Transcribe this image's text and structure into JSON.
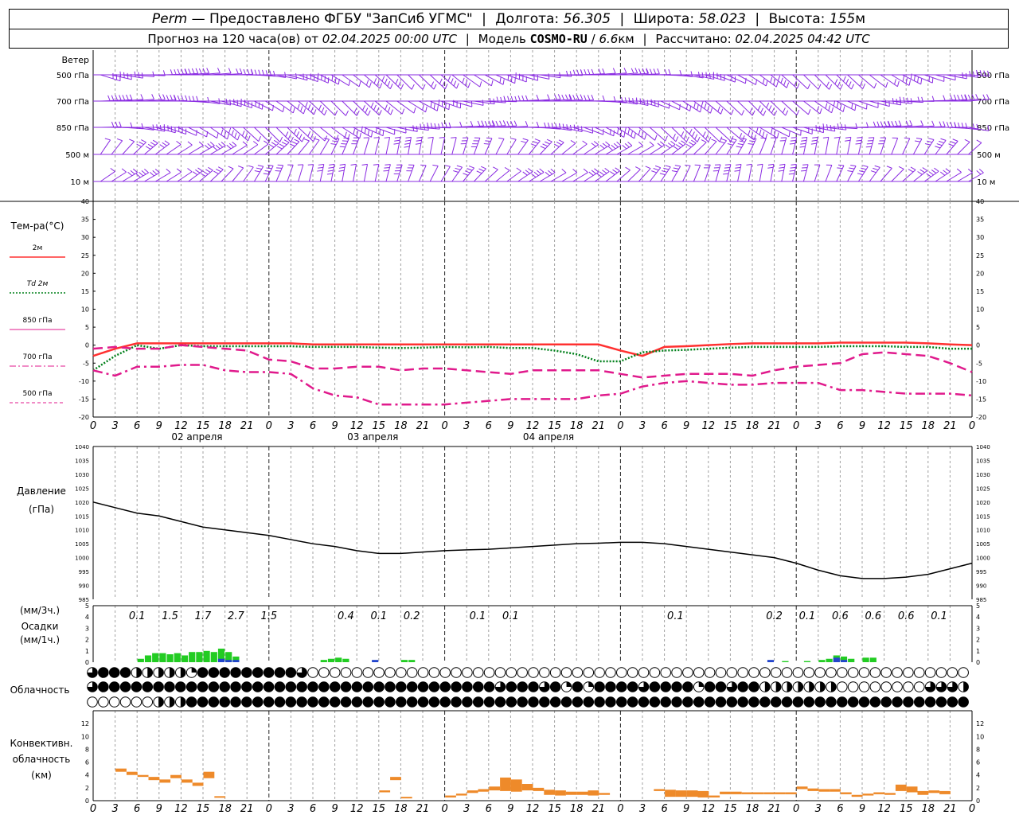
{
  "header": {
    "station": "Perm",
    "dash": "—",
    "provider": "Предоставлено ФГБУ \"ЗапСиб УГМС\"",
    "lon_label": "Долгота:",
    "lon_value": "56.305",
    "lat_label": "Широта:",
    "lat_value": "58.023",
    "alt_label": "Высота:",
    "alt_value": "155",
    "alt_unit": "м",
    "forecast_label": "Прогноз на 120 часа(ов) от",
    "forecast_start": "02.04.2025 00:00 UTC",
    "model_label": "Модель",
    "model_name": "COSMO-RU",
    "model_res": "6.6",
    "model_res_unit": "км",
    "computed_label": "Рассчитано:",
    "computed_time": "02.04.2025 04:42 UTC",
    "bar": "|",
    "slash": "/"
  },
  "colors": {
    "t2m": "#ff3030",
    "td2m": "#00801a",
    "t850": "#e01a8c",
    "t700": "#e01a8c",
    "t500": "#e01a8c",
    "wind": "#8a2be2",
    "precip_3h": "#22cc22",
    "precip_1h": "#2244cc",
    "convective": "#ee8a2a",
    "grid": "#999999"
  },
  "chart_data": [
    {
      "id": "wind",
      "type": "wind-barbs",
      "title": "Ветер",
      "levels": [
        "500 гПа",
        "700 гПа",
        "850 гПа",
        "500 м",
        "10 м"
      ],
      "x_hours": [
        0,
        120
      ],
      "note_levels_right": [
        "500 гПа",
        "700 гПа",
        "850 гПа",
        "500 м",
        "10 м"
      ]
    },
    {
      "id": "temperature",
      "type": "line",
      "title": "Тем-ра(°C)",
      "ylim": [
        -20,
        40
      ],
      "yticks": [
        -20,
        -15,
        -10,
        -5,
        0,
        5,
        10,
        15,
        20,
        25,
        30,
        35,
        40
      ],
      "legend": [
        {
          "label": "2м",
          "key": "t2m",
          "style": "solid"
        },
        {
          "label": "Td 2м",
          "key": "td2m",
          "style": "dotted"
        },
        {
          "label": "850 гПа",
          "key": "t850",
          "style": "dashed"
        },
        {
          "label": "700 гПа",
          "key": "t700",
          "style": "dashdot"
        },
        {
          "label": "500 гПа",
          "key": "t500",
          "style": "dashed-thin"
        }
      ],
      "x": [
        0,
        3,
        6,
        9,
        12,
        15,
        18,
        21,
        24,
        27,
        30,
        33,
        36,
        39,
        42,
        45,
        48,
        51,
        54,
        57,
        60,
        63,
        66,
        69,
        72,
        75,
        78,
        81,
        84,
        87,
        90,
        93,
        96,
        99,
        102,
        105,
        108,
        111,
        114,
        117,
        120
      ],
      "series": [
        {
          "key": "t2m",
          "values": [
            -3,
            -1,
            0.5,
            0.5,
            0.5,
            0.5,
            0.5,
            0.5,
            0.5,
            0.5,
            0.2,
            0.2,
            0.2,
            0.2,
            0.2,
            0.2,
            0.2,
            0.2,
            0.2,
            0.2,
            0.2,
            0.2,
            0.2,
            0.2,
            -1.5,
            -3,
            -0.5,
            -0.3,
            0,
            0.3,
            0.5,
            0.5,
            0.5,
            0.5,
            0.7,
            0.7,
            0.7,
            0.7,
            0.5,
            0.2,
            0
          ]
        },
        {
          "key": "td2m",
          "values": [
            -7,
            -3,
            0,
            -1,
            0,
            -0.3,
            -0.3,
            -0.3,
            -0.3,
            -0.3,
            -0.5,
            -0.5,
            -0.5,
            -0.7,
            -0.8,
            -0.7,
            -0.5,
            -0.6,
            -0.5,
            -0.8,
            -0.8,
            -1.5,
            -2.5,
            -4.5,
            -4.5,
            -2,
            -1.5,
            -1.3,
            -1,
            -0.7,
            -0.5,
            -0.5,
            -0.5,
            -0.5,
            -0.3,
            -0.3,
            -0.3,
            -0.5,
            -0.5,
            -1,
            -1
          ]
        },
        {
          "key": "t850",
          "values": [
            -1,
            -0.5,
            -1,
            -1,
            0,
            -0.5,
            -1,
            -1.5,
            -4,
            -4.5,
            -6.5,
            -6.5,
            -6,
            -6,
            -7,
            -6.5,
            -6.5,
            -7,
            -7.5,
            -8,
            -7,
            -7,
            -7,
            -7,
            -8,
            -9,
            -8.5,
            -8,
            -8,
            -8,
            -8.5,
            -7,
            -6,
            -5.5,
            -5,
            -2.5,
            -2,
            -2.5,
            -3,
            -5,
            -7.5
          ]
        },
        {
          "key": "t700",
          "values": [
            -7,
            -8.5,
            -6,
            -6,
            -5.5,
            -5.5,
            -7,
            -7.5,
            -7.5,
            -8,
            -12,
            -14,
            -14.5,
            -16.5,
            -16.5,
            -16.5,
            -16.5,
            -16,
            -15.5,
            -15,
            -15,
            -15,
            -15,
            -14,
            -13.5,
            -11.5,
            -10.5,
            -10,
            -10.5,
            -11,
            -11,
            -10.5,
            -10.5,
            -10.5,
            -12.5,
            -12.5,
            -13,
            -13.5,
            -13.5,
            -13.5,
            -14
          ]
        }
      ],
      "xtick_labels": [
        "0",
        "3",
        "6",
        "9",
        "12",
        "15",
        "18",
        "21",
        "0",
        "3",
        "6",
        "9",
        "12",
        "15",
        "18",
        "21",
        "0",
        "3",
        "6",
        "9",
        "12",
        "15",
        "18",
        "21",
        "0",
        "3",
        "6",
        "9",
        "12",
        "15",
        "18",
        "21",
        "0",
        "3",
        "6",
        "9",
        "12",
        "15",
        "18",
        "21",
        "0"
      ],
      "day_labels": [
        "02 апреля",
        "03 апреля",
        "04 апреля"
      ]
    },
    {
      "id": "pressure",
      "type": "line",
      "title": "Давление",
      "ylabel": "(гПа)",
      "ylim": [
        985,
        1040
      ],
      "yticks": [
        985,
        990,
        995,
        1000,
        1005,
        1010,
        1015,
        1020,
        1025,
        1030,
        1035,
        1040
      ],
      "x": [
        0,
        3,
        6,
        9,
        12,
        15,
        18,
        21,
        24,
        27,
        30,
        33,
        36,
        39,
        42,
        45,
        48,
        51,
        54,
        57,
        60,
        63,
        66,
        69,
        72,
        75,
        78,
        81,
        84,
        87,
        90,
        93,
        96,
        99,
        102,
        105,
        108,
        111,
        114,
        117,
        120
      ],
      "values": [
        1020,
        1018,
        1016,
        1015,
        1013,
        1011,
        1010,
        1009,
        1008,
        1006.5,
        1005,
        1004,
        1002.5,
        1001.5,
        1001.5,
        1002,
        1002.5,
        1002.8,
        1003,
        1003.5,
        1004,
        1004.5,
        1005,
        1005.2,
        1005.5,
        1005.5,
        1005,
        1004,
        1003,
        1002,
        1001,
        1000,
        998,
        995.5,
        993.5,
        992.5,
        992.5,
        993,
        994,
        996,
        998
      ]
    },
    {
      "id": "precipitation",
      "type": "bar",
      "title": "Осадки",
      "ylabel_3h": "(мм/3ч.)",
      "ylabel_1h": "(мм/1ч.)",
      "ylim": [
        0,
        5
      ],
      "yticks": [
        0,
        1,
        2,
        3,
        4,
        5
      ],
      "labels_3h": [
        {
          "x": 6,
          "text": "0.1"
        },
        {
          "x": 10.5,
          "text": "1.5"
        },
        {
          "x": 15,
          "text": "1.7"
        },
        {
          "x": 19.5,
          "text": "2.7"
        },
        {
          "x": 24,
          "text": "1.5"
        },
        {
          "x": 34.5,
          "text": "0.4"
        },
        {
          "x": 39,
          "text": "0.1"
        },
        {
          "x": 43.5,
          "text": "0.2"
        },
        {
          "x": 52.5,
          "text": "0.1"
        },
        {
          "x": 57,
          "text": "0.1"
        },
        {
          "x": 79.5,
          "text": "0.1"
        },
        {
          "x": 93,
          "text": "0.2"
        },
        {
          "x": 97.5,
          "text": "0.1"
        },
        {
          "x": 102,
          "text": "0.6"
        },
        {
          "x": 106.5,
          "text": "0.6"
        },
        {
          "x": 111,
          "text": "0.6"
        },
        {
          "x": 115.5,
          "text": "0.1"
        }
      ],
      "bars_1h_green": [
        {
          "x": 7,
          "v": 0.3
        },
        {
          "x": 8,
          "v": 0.6
        },
        {
          "x": 9,
          "v": 0.8
        },
        {
          "x": 10,
          "v": 0.8
        },
        {
          "x": 11,
          "v": 0.7
        },
        {
          "x": 12,
          "v": 0.8
        },
        {
          "x": 13,
          "v": 0.6
        },
        {
          "x": 14,
          "v": 0.9
        },
        {
          "x": 15,
          "v": 0.9
        },
        {
          "x": 16,
          "v": 1.0
        },
        {
          "x": 17,
          "v": 0.9
        },
        {
          "x": 18,
          "v": 1.2
        },
        {
          "x": 19,
          "v": 0.9
        },
        {
          "x": 20,
          "v": 0.5
        },
        {
          "x": 32,
          "v": 0.2
        },
        {
          "x": 33,
          "v": 0.3
        },
        {
          "x": 34,
          "v": 0.4
        },
        {
          "x": 35,
          "v": 0.3
        },
        {
          "x": 43,
          "v": 0.2
        },
        {
          "x": 44,
          "v": 0.2
        },
        {
          "x": 95,
          "v": 0.1
        },
        {
          "x": 98,
          "v": 0.1
        },
        {
          "x": 100,
          "v": 0.2
        },
        {
          "x": 101,
          "v": 0.3
        },
        {
          "x": 102,
          "v": 0.6
        },
        {
          "x": 103,
          "v": 0.5
        },
        {
          "x": 104,
          "v": 0.3
        },
        {
          "x": 106,
          "v": 0.4
        },
        {
          "x": 107,
          "v": 0.4
        }
      ],
      "bars_1h_blue": [
        {
          "x": 18,
          "v": 0.3
        },
        {
          "x": 19,
          "v": 0.2
        },
        {
          "x": 20,
          "v": 0.2
        },
        {
          "x": 39,
          "v": 0.2
        },
        {
          "x": 93,
          "v": 0.2
        },
        {
          "x": 102,
          "v": 0.4
        },
        {
          "x": 103,
          "v": 0.2
        }
      ]
    },
    {
      "id": "clouds",
      "type": "table",
      "title": "Облачность",
      "rows": [
        "LFFFHHHHHQFFFFFFFFFLEEEEEEEEEEEEEEEEEEEEEEEEEEEEEEEEEEEEEEEEEEEEEEEEEEEEEEEEEEEEEEELLEHHELEEHLQLLLLLLLFFFFFFFFFFLEEEEEEEEE",
        "LFFFFFFFFFFFFFFFFFFFFFFFFFFFFFFFFFFFFLFFFLFQFQFFFFLFFFFQFFLFFHHHHHHHEEEEEEEELLLHLFLFFFFFFFFFFFFFFFFFFFFFFFFFFFFFEEEEEEEE",
        "EEEEEEHHHFFFFFFFFFFFFFFFFFFFFFFFFFFFFFFFFFFFFFFFFFFFFFFFFFFFFFFFFFFFFFFFFFFFFFFFFFQQHLQHLQFFFFFFFFFFFFFFFFFFFFFFFFFLFFFF"
      ]
    },
    {
      "id": "convective",
      "type": "bar",
      "title": "Конвективн.",
      "title2": "облачность",
      "ylabel": "(км)",
      "ylim": [
        0,
        14
      ],
      "yticks": [
        0,
        2,
        4,
        6,
        8,
        10,
        12
      ],
      "segments": [
        {
          "x": 3,
          "base": 4.5,
          "top": 5.0
        },
        {
          "x": 4,
          "base": 4.0,
          "top": 4.5
        },
        {
          "x": 5,
          "base": 3.7,
          "top": 4.0
        },
        {
          "x": 6,
          "base": 3.2,
          "top": 3.7
        },
        {
          "x": 7,
          "base": 2.8,
          "top": 3.3
        },
        {
          "x": 8,
          "base": 3.5,
          "top": 4.0
        },
        {
          "x": 9,
          "base": 2.8,
          "top": 3.3
        },
        {
          "x": 10,
          "base": 2.3,
          "top": 2.8
        },
        {
          "x": 11,
          "base": 3.5,
          "top": 4.5
        },
        {
          "x": 12,
          "base": 0.5,
          "top": 0.7
        },
        {
          "x": 27,
          "base": 1.3,
          "top": 1.6
        },
        {
          "x": 28,
          "base": 3.2,
          "top": 3.7
        },
        {
          "x": 29,
          "base": 0.4,
          "top": 0.6
        },
        {
          "x": 33,
          "base": 0.5,
          "top": 0.8
        },
        {
          "x": 34,
          "base": 0.8,
          "top": 1.1
        },
        {
          "x": 35,
          "base": 1.2,
          "top": 1.6
        },
        {
          "x": 36,
          "base": 1.4,
          "top": 1.8
        },
        {
          "x": 37,
          "base": 1.6,
          "top": 2.2
        },
        {
          "x": 38,
          "base": 1.5,
          "top": 3.6
        },
        {
          "x": 39,
          "base": 1.4,
          "top": 3.3
        },
        {
          "x": 40,
          "base": 1.6,
          "top": 2.6
        },
        {
          "x": 41,
          "base": 1.5,
          "top": 2.0
        },
        {
          "x": 42,
          "base": 0.9,
          "top": 1.7
        },
        {
          "x": 43,
          "base": 0.8,
          "top": 1.6
        },
        {
          "x": 44,
          "base": 0.9,
          "top": 1.4
        },
        {
          "x": 45,
          "base": 0.9,
          "top": 1.4
        },
        {
          "x": 46,
          "base": 0.8,
          "top": 1.6
        },
        {
          "x": 47,
          "base": 0.9,
          "top": 1.2
        },
        {
          "x": 52,
          "base": 1.5,
          "top": 1.8
        },
        {
          "x": 53,
          "base": 0.6,
          "top": 1.7
        },
        {
          "x": 54,
          "base": 0.6,
          "top": 1.6
        },
        {
          "x": 55,
          "base": 0.6,
          "top": 1.6
        },
        {
          "x": 56,
          "base": 0.5,
          "top": 1.5
        },
        {
          "x": 57,
          "base": 0.5,
          "top": 0.8
        },
        {
          "x": 58,
          "base": 1.0,
          "top": 1.4
        },
        {
          "x": 59,
          "base": 1.0,
          "top": 1.4
        },
        {
          "x": 60,
          "base": 1.0,
          "top": 1.3
        },
        {
          "x": 61,
          "base": 1.0,
          "top": 1.3
        },
        {
          "x": 62,
          "base": 1.0,
          "top": 1.3
        },
        {
          "x": 63,
          "base": 1.0,
          "top": 1.3
        },
        {
          "x": 64,
          "base": 1.0,
          "top": 1.3
        },
        {
          "x": 65,
          "base": 1.8,
          "top": 2.2
        },
        {
          "x": 66,
          "base": 1.5,
          "top": 1.9
        },
        {
          "x": 67,
          "base": 1.4,
          "top": 1.8
        },
        {
          "x": 68,
          "base": 1.4,
          "top": 1.8
        },
        {
          "x": 69,
          "base": 1.0,
          "top": 1.3
        },
        {
          "x": 70,
          "base": 0.6,
          "top": 0.9
        },
        {
          "x": 71,
          "base": 0.8,
          "top": 1.1
        },
        {
          "x": 72,
          "base": 1.0,
          "top": 1.3
        },
        {
          "x": 73,
          "base": 0.9,
          "top": 1.2
        },
        {
          "x": 74,
          "base": 1.5,
          "top": 2.5
        },
        {
          "x": 75,
          "base": 1.3,
          "top": 2.2
        },
        {
          "x": 76,
          "base": 0.9,
          "top": 1.5
        },
        {
          "x": 77,
          "base": 1.2,
          "top": 1.6
        },
        {
          "x": 78,
          "base": 1.0,
          "top": 1.5
        }
      ]
    }
  ]
}
